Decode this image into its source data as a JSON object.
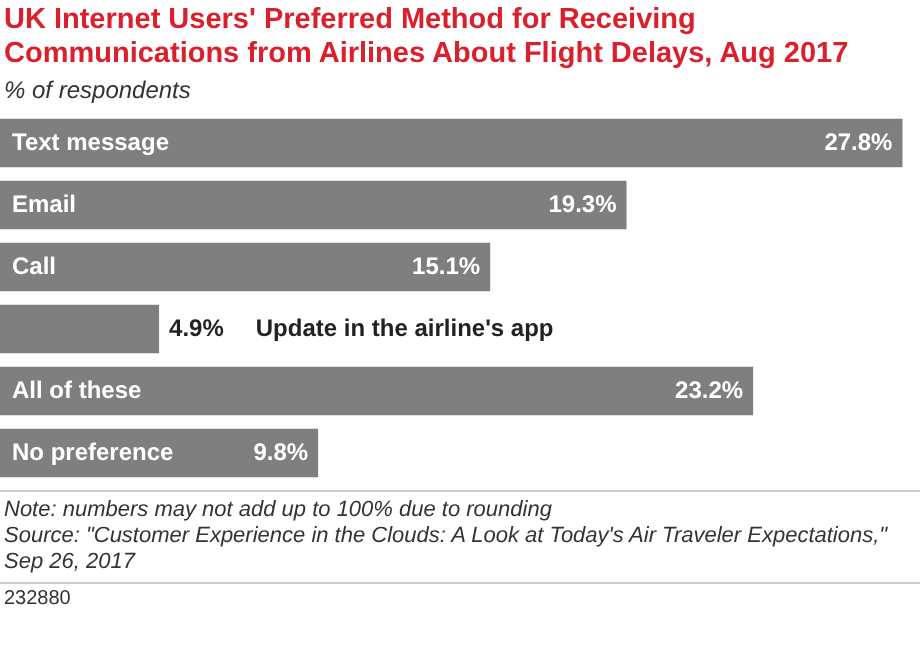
{
  "chart_data": {
    "type": "bar",
    "orientation": "horizontal",
    "title": "UK Internet Users' Preferred Method for Receiving Communications from Airlines About Flight Delays, Aug 2017",
    "subtitle": "% of respondents",
    "categories": [
      "Text message",
      "Email",
      "Call",
      "Update in the airline's app",
      "All of these",
      "No preference"
    ],
    "values": [
      27.8,
      19.3,
      15.1,
      4.9,
      23.2,
      9.8
    ],
    "color": "#7f7f7f",
    "value_labels": [
      "27.8%",
      "19.3%",
      "15.1%",
      "4.9%",
      "23.2%",
      "9.8%"
    ],
    "annotations": [
      "Note: numbers may not add up to 100% due to rounding",
      "Source: \"Customer Experience in the Clouds: A Look at Today's Air Traveler Expectations,\" Sep 26, 2017",
      "232880"
    ]
  }
}
